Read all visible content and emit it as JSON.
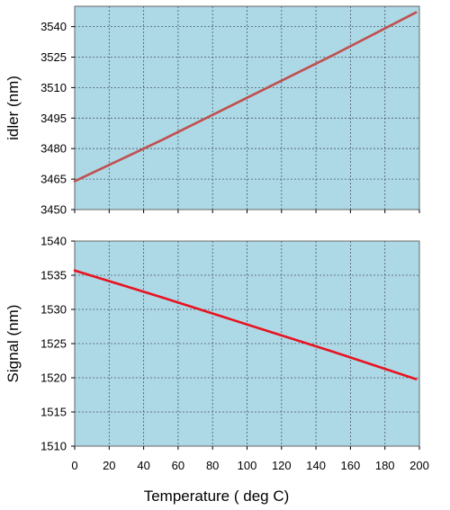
{
  "chart_data": [
    {
      "type": "line",
      "title": "",
      "xlabel": "",
      "ylabel": "idler (nm)",
      "xlim": [
        0,
        200
      ],
      "ylim": [
        3450,
        3550
      ],
      "x_ticks": [
        0,
        20,
        40,
        60,
        80,
        100,
        120,
        140,
        160,
        180,
        200
      ],
      "y_ticks": [
        3450,
        3465,
        3480,
        3495,
        3510,
        3525,
        3540
      ],
      "grid": true,
      "plot_background": "#add8e6",
      "series": [
        {
          "color": "#c0504d",
          "x": [
            0,
            50,
            100,
            150,
            198
          ],
          "y": [
            3464,
            3484,
            3505,
            3526,
            3547
          ]
        }
      ]
    },
    {
      "type": "line",
      "title": "",
      "xlabel": "Temperature ( deg C)",
      "ylabel": "Signal (nm)",
      "xlim": [
        0,
        200
      ],
      "ylim": [
        1510,
        1540
      ],
      "x_ticks": [
        0,
        20,
        40,
        60,
        80,
        100,
        120,
        140,
        160,
        180,
        200
      ],
      "y_ticks": [
        1510,
        1515,
        1520,
        1525,
        1530,
        1535,
        1540
      ],
      "grid": true,
      "plot_background": "#add8e6",
      "series": [
        {
          "color": "#e8131f",
          "x": [
            0,
            50,
            100,
            150,
            198
          ],
          "y": [
            1535.7,
            1531.8,
            1527.8,
            1523.8,
            1519.8
          ]
        }
      ]
    }
  ]
}
